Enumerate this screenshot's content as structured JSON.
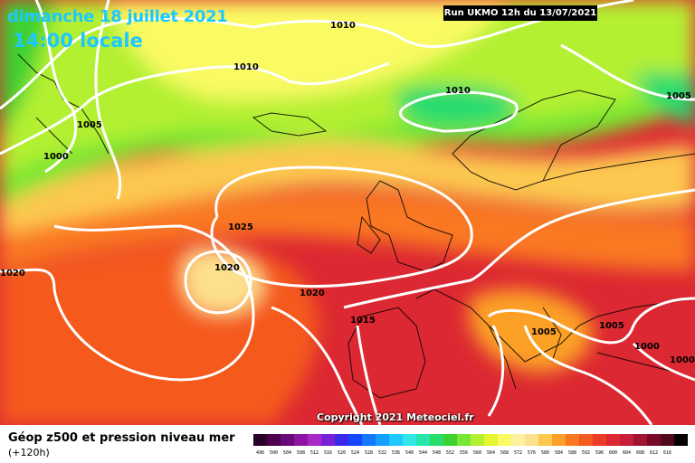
{
  "header": {
    "date_line": "dimanche 18 juillet 2021",
    "time_line": "14:00 locale",
    "run_label": "Run UKMO 12h du 13/07/2021"
  },
  "copyright": "Copyright 2021 Meteociel.fr",
  "legend": {
    "title": "Géop z500 et pression niveau mer",
    "subtitle": "(+120h)",
    "scale": [
      {
        "label": "496",
        "color": "#2a0028"
      },
      {
        "label": "500",
        "color": "#4a004a"
      },
      {
        "label": "504",
        "color": "#6a0a78"
      },
      {
        "label": "508",
        "color": "#8c14a0"
      },
      {
        "label": "512",
        "color": "#a828c8"
      },
      {
        "label": "516",
        "color": "#7a20d8"
      },
      {
        "label": "520",
        "color": "#3c28e8"
      },
      {
        "label": "524",
        "color": "#1446ff"
      },
      {
        "label": "528",
        "color": "#1478ff"
      },
      {
        "label": "532",
        "color": "#14a0ff"
      },
      {
        "label": "536",
        "color": "#1ec8ff"
      },
      {
        "label": "540",
        "color": "#32e6e6"
      },
      {
        "label": "544",
        "color": "#28e6aa"
      },
      {
        "label": "548",
        "color": "#28dc6e"
      },
      {
        "label": "552",
        "color": "#3cd232"
      },
      {
        "label": "556",
        "color": "#78e632"
      },
      {
        "label": "560",
        "color": "#b4f032"
      },
      {
        "label": "564",
        "color": "#e6f532"
      },
      {
        "label": "568",
        "color": "#fafa64"
      },
      {
        "label": "572",
        "color": "#fff0a0"
      },
      {
        "label": "576",
        "color": "#fde08c"
      },
      {
        "label": "580",
        "color": "#fcc850"
      },
      {
        "label": "584",
        "color": "#fca028"
      },
      {
        "label": "588",
        "color": "#fa7820"
      },
      {
        "label": "592",
        "color": "#f55a1e"
      },
      {
        "label": "596",
        "color": "#eb3c28"
      },
      {
        "label": "600",
        "color": "#dc2832"
      },
      {
        "label": "604",
        "color": "#c81e3c"
      },
      {
        "label": "608",
        "color": "#a01432"
      },
      {
        "label": "612",
        "color": "#780a28"
      },
      {
        "label": "616",
        "color": "#500a1e"
      },
      {
        "label": "",
        "color": "#000000"
      }
    ]
  },
  "isobars": [
    "1010",
    "1010",
    "1005",
    "1000",
    "1010",
    "1005",
    "1025",
    "1020",
    "1020",
    "1020",
    "1015",
    "1005",
    "1005",
    "1000",
    "1000"
  ]
}
